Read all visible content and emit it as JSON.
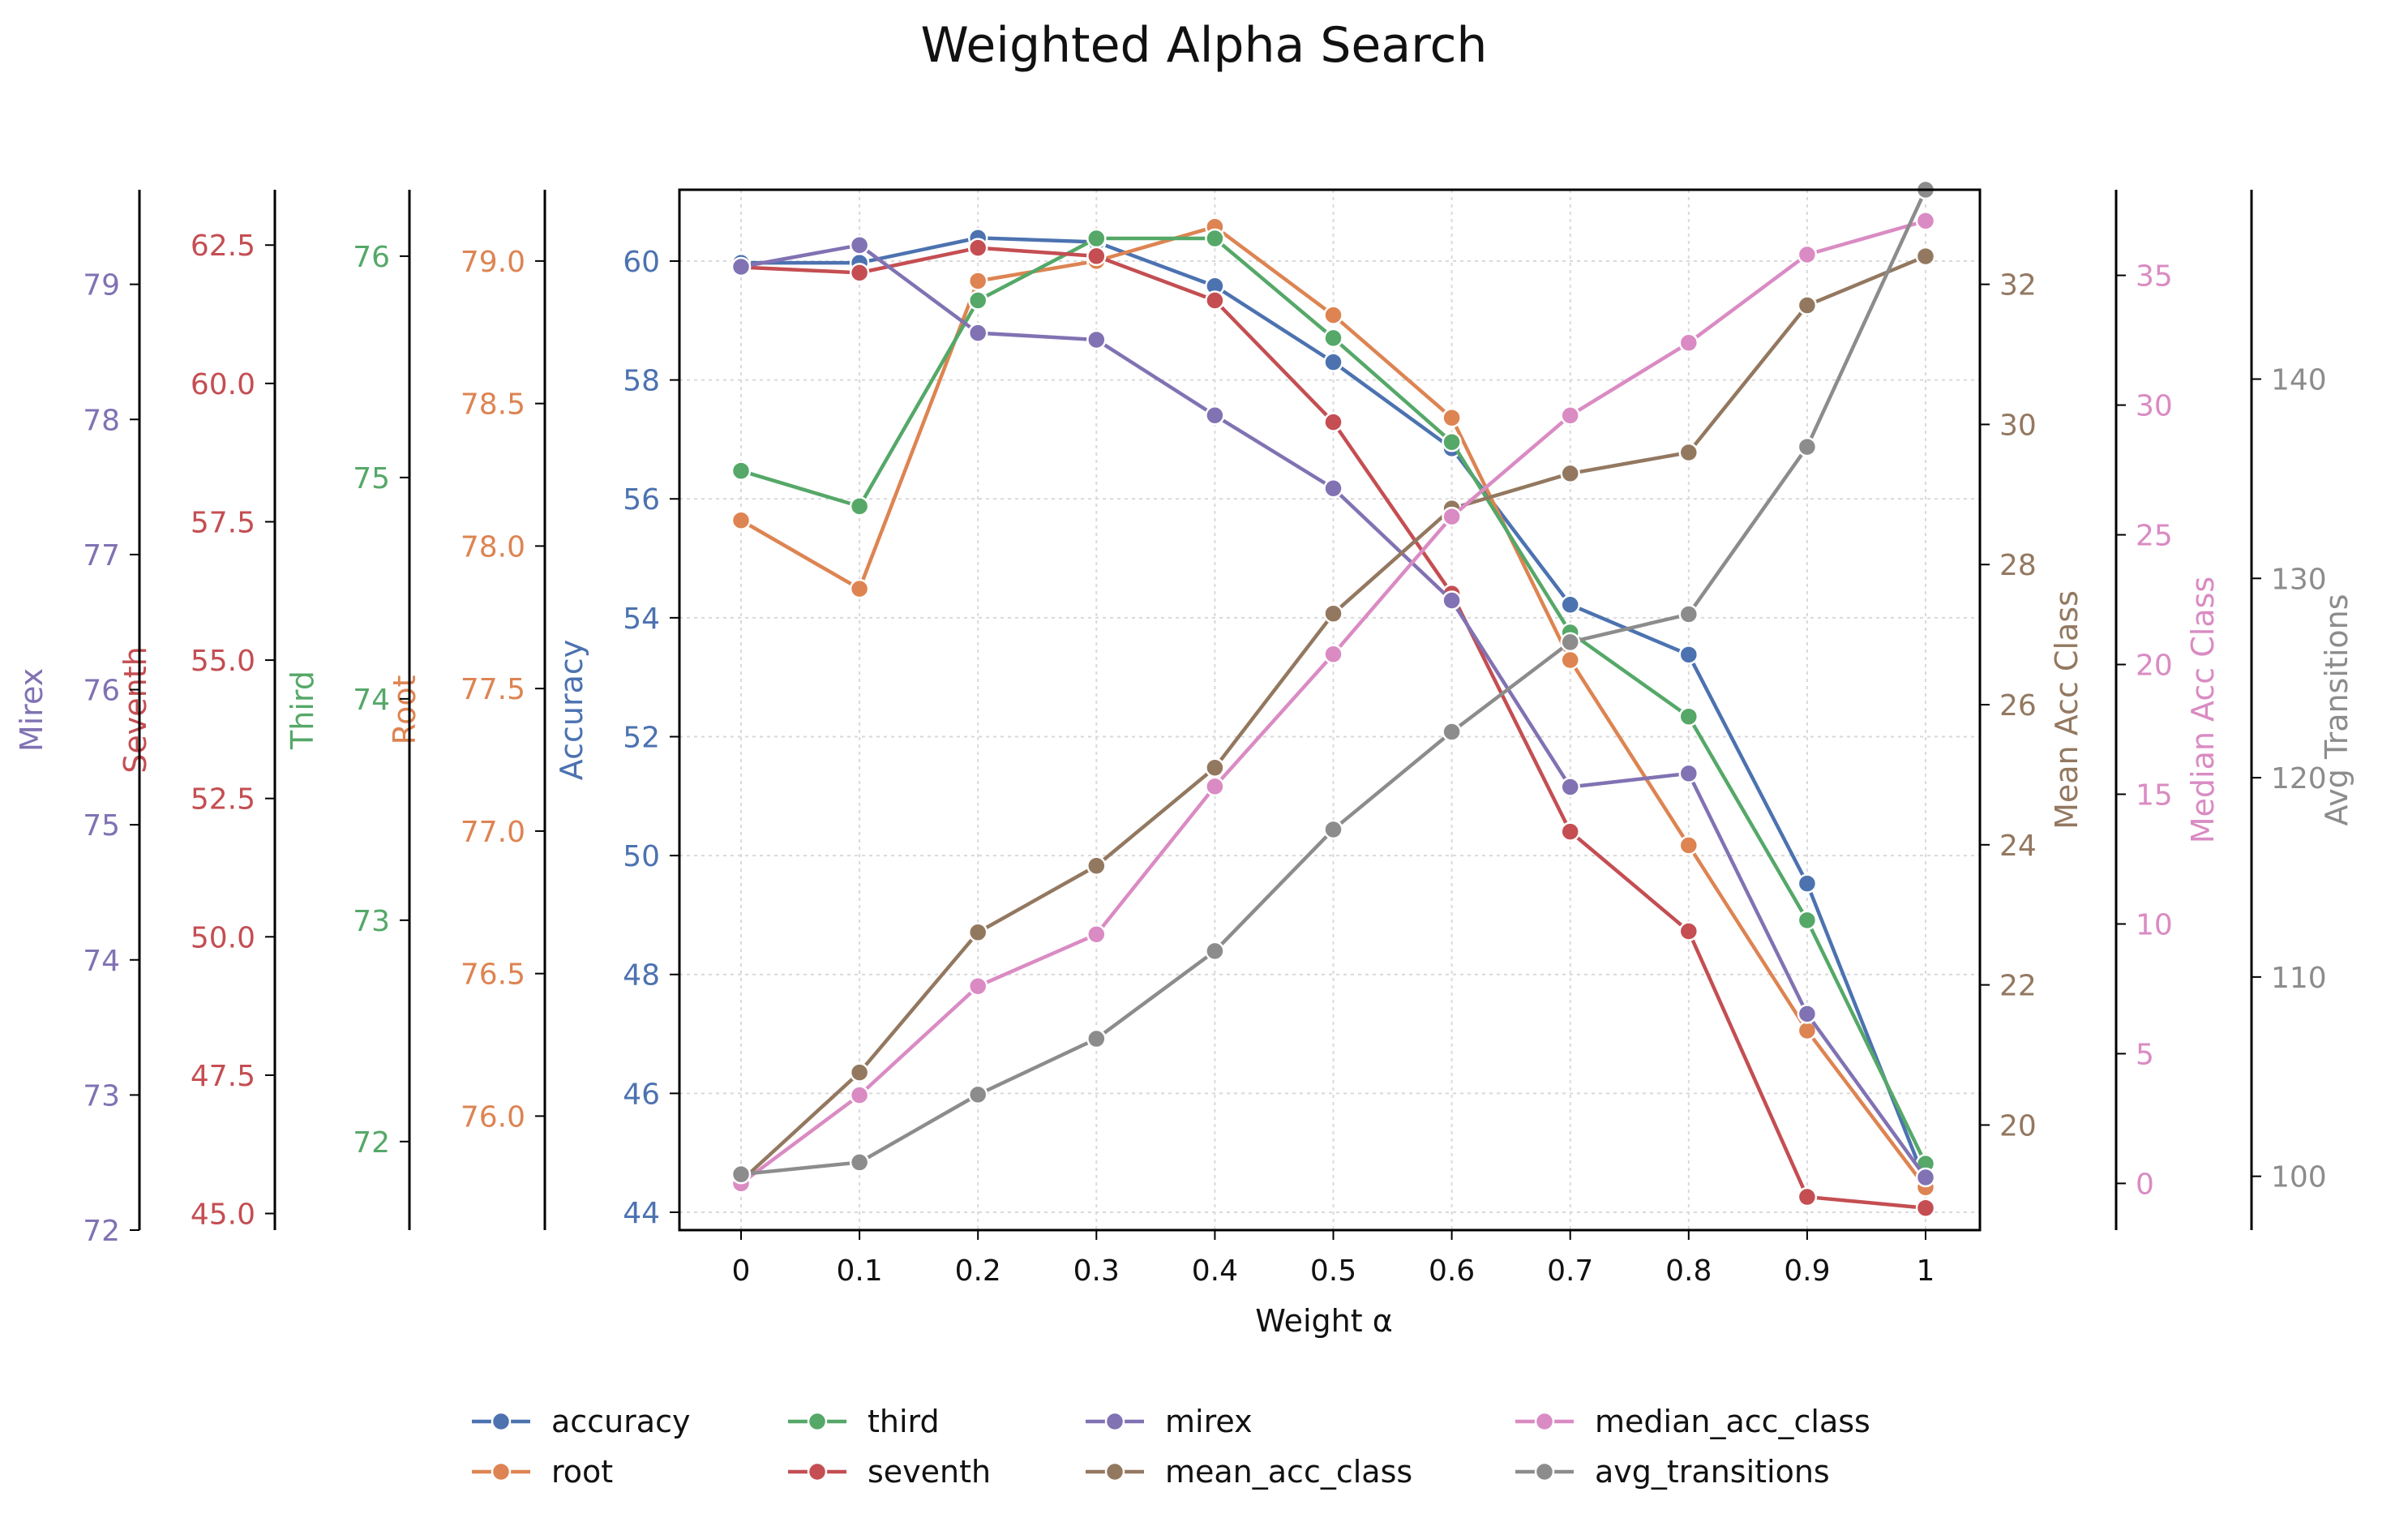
{
  "chart_data": {
    "type": "line",
    "title": "Weighted Alpha Search",
    "xlabel": "Weight α",
    "x": [
      0,
      0.1,
      0.2,
      0.3,
      0.4,
      0.5,
      0.6,
      0.7,
      0.8,
      0.9,
      1
    ],
    "x_tick_labels": [
      "0",
      "0.1",
      "0.2",
      "0.3",
      "0.4",
      "0.5",
      "0.6",
      "0.7",
      "0.8",
      "0.9",
      "1"
    ],
    "grid": true,
    "legend_position": "bottom",
    "axes": [
      {
        "key": "accuracy",
        "label": "Accuracy",
        "side": "left",
        "ylim": [
          43.7,
          61.2
        ],
        "ticks": [
          44,
          46,
          48,
          50,
          52,
          54,
          56,
          58,
          60
        ],
        "tick_labels": [
          "44",
          "46",
          "48",
          "50",
          "52",
          "54",
          "56",
          "58",
          "60"
        ],
        "color": "#4c72b0"
      },
      {
        "key": "root",
        "label": "Root",
        "side": "left",
        "ylim": [
          75.6,
          79.25
        ],
        "ticks": [
          76.0,
          76.5,
          77.0,
          77.5,
          78.0,
          78.5,
          79.0
        ],
        "tick_labels": [
          "76.0",
          "76.5",
          "77.0",
          "77.5",
          "78.0",
          "78.5",
          "79.0"
        ],
        "color": "#dd8452"
      },
      {
        "key": "third",
        "label": "Third",
        "side": "left",
        "ylim": [
          71.6,
          76.3
        ],
        "ticks": [
          72,
          73,
          74,
          75,
          76
        ],
        "tick_labels": [
          "72",
          "73",
          "74",
          "75",
          "76"
        ],
        "color": "#55a868"
      },
      {
        "key": "seventh",
        "label": "Seventh",
        "side": "left",
        "ylim": [
          44.7,
          63.5
        ],
        "ticks": [
          45.0,
          47.5,
          50.0,
          52.5,
          55.0,
          57.5,
          60.0,
          62.5
        ],
        "tick_labels": [
          "45.0",
          "47.5",
          "50.0",
          "52.5",
          "55.0",
          "57.5",
          "60.0",
          "62.5"
        ],
        "color": "#c44e52"
      },
      {
        "key": "mirex",
        "label": "Mirex",
        "side": "left",
        "ylim": [
          72.0,
          79.7
        ],
        "ticks": [
          72,
          73,
          74,
          75,
          76,
          77,
          78,
          79
        ],
        "tick_labels": [
          "72",
          "73",
          "74",
          "75",
          "76",
          "77",
          "78",
          "79"
        ],
        "color": "#8172b3"
      },
      {
        "key": "mean_acc_class",
        "label": "Mean Acc Class",
        "side": "right",
        "ylim": [
          18.5,
          33.35
        ],
        "ticks": [
          20,
          22,
          24,
          26,
          28,
          30,
          32
        ],
        "tick_labels": [
          "20",
          "22",
          "24",
          "26",
          "28",
          "30",
          "32"
        ],
        "color": "#937860"
      },
      {
        "key": "median_acc_class",
        "label": "Median Acc Class",
        "side": "right",
        "ylim": [
          -1.8,
          38.3
        ],
        "ticks": [
          0,
          5,
          10,
          15,
          20,
          25,
          30,
          35
        ],
        "tick_labels": [
          "0",
          "5",
          "10",
          "15",
          "20",
          "25",
          "30",
          "35"
        ],
        "color": "#da8bc3"
      },
      {
        "key": "avg_transitions",
        "label": "Avg Transitions",
        "side": "right",
        "ylim": [
          97.3,
          149.5
        ],
        "ticks": [
          100,
          110,
          120,
          130,
          140
        ],
        "tick_labels": [
          "100",
          "110",
          "120",
          "130",
          "140"
        ],
        "color": "#8c8c8c"
      }
    ],
    "series": [
      {
        "name": "accuracy",
        "axis": "accuracy",
        "color": "#4c72b0",
        "values": [
          59.97,
          59.97,
          60.39,
          60.32,
          59.58,
          58.3,
          56.85,
          54.22,
          53.38,
          49.53,
          44.51
        ]
      },
      {
        "name": "root",
        "axis": "root",
        "color": "#dd8452",
        "values": [
          78.09,
          77.85,
          78.93,
          79.0,
          79.12,
          78.81,
          78.45,
          77.6,
          76.95,
          76.3,
          75.75
        ]
      },
      {
        "name": "third",
        "axis": "third",
        "color": "#55a868",
        "values": [
          75.03,
          74.87,
          75.8,
          76.08,
          76.08,
          75.63,
          75.16,
          74.3,
          73.92,
          73.0,
          71.9
        ]
      },
      {
        "name": "seventh",
        "axis": "seventh",
        "color": "#c44e52",
        "values": [
          62.1,
          62.0,
          62.45,
          62.3,
          61.5,
          59.3,
          56.2,
          51.9,
          50.1,
          45.3,
          45.1
        ]
      },
      {
        "name": "mirex",
        "axis": "mirex",
        "color": "#8172b3",
        "values": [
          79.13,
          79.29,
          78.64,
          78.59,
          78.03,
          77.49,
          76.66,
          75.28,
          75.38,
          73.6,
          72.39
        ]
      },
      {
        "name": "mean_acc_class",
        "axis": "mean_acc_class",
        "color": "#937860",
        "values": [
          19.2,
          20.75,
          22.75,
          23.7,
          25.1,
          27.3,
          28.8,
          29.3,
          29.6,
          31.7,
          32.4
        ]
      },
      {
        "name": "median_acc_class",
        "axis": "median_acc_class",
        "color": "#da8bc3",
        "values": [
          0,
          3.4,
          7.6,
          9.6,
          15.3,
          20.4,
          25.7,
          29.6,
          32.4,
          35.8,
          37.1
        ]
      },
      {
        "name": "avg_transitions",
        "axis": "avg_transitions",
        "color": "#8c8c8c",
        "values": [
          100.1,
          100.7,
          104.1,
          106.9,
          111.3,
          117.4,
          122.3,
          126.8,
          128.2,
          136.6,
          149.5
        ]
      }
    ]
  }
}
